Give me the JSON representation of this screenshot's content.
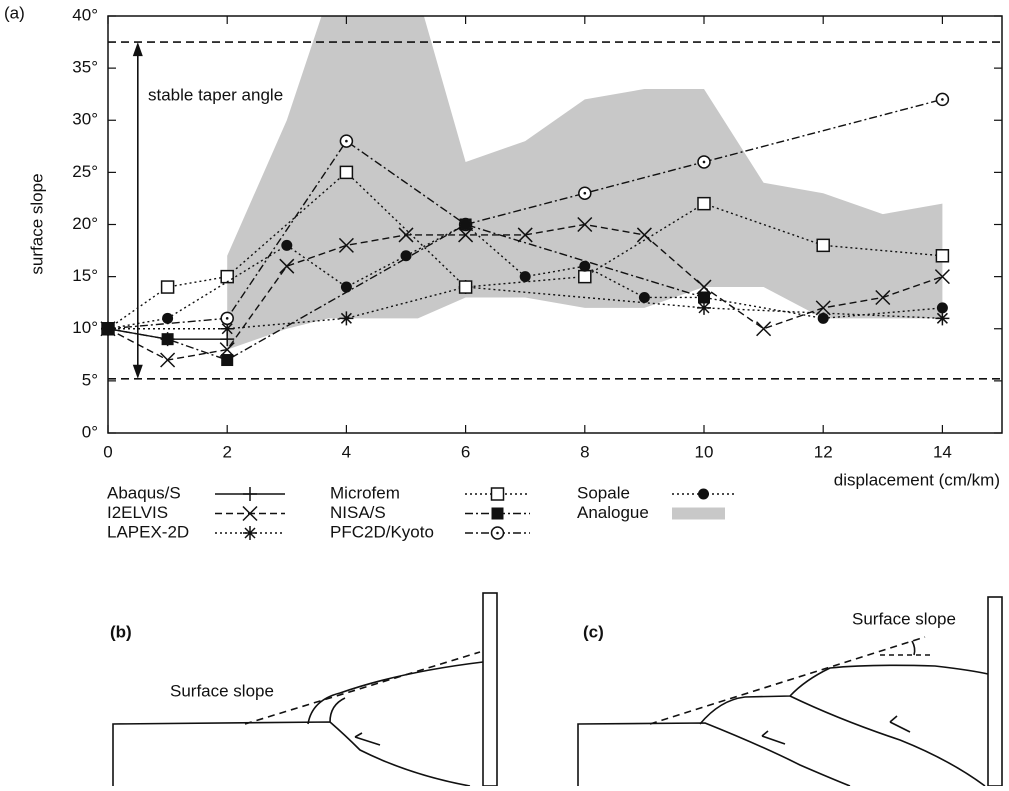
{
  "chart_data": {
    "type": "line",
    "panel_label": "(a)",
    "ylabel": "surface slope",
    "xlabel": "displacement (cm/km)",
    "xlim": [
      0,
      15
    ],
    "ylim": [
      0,
      40
    ],
    "xticks": [
      0,
      2,
      4,
      6,
      8,
      10,
      12,
      14
    ],
    "yticks": [
      {
        "value": 0,
        "label": "0°"
      },
      {
        "value": 5,
        "label": "5°"
      },
      {
        "value": 10,
        "label": "10°"
      },
      {
        "value": 15,
        "label": "15°"
      },
      {
        "value": 20,
        "label": "20°"
      },
      {
        "value": 25,
        "label": "25°"
      },
      {
        "value": 30,
        "label": "30°"
      },
      {
        "value": 35,
        "label": "35°"
      },
      {
        "value": 40,
        "label": "40°"
      }
    ],
    "annotation": "stable taper angle",
    "taper_range": [
      5.2,
      37.5
    ],
    "taper_arrow_x": 0.5,
    "band": {
      "name": "Analogue",
      "color": "#c8c8c8",
      "x": [
        2,
        3,
        3.7,
        5.2,
        6,
        7,
        8,
        9,
        10,
        11,
        12,
        13,
        14
      ],
      "upper": [
        17,
        30,
        42,
        42,
        26,
        28,
        32,
        33,
        33,
        24,
        23,
        21,
        22
      ],
      "lower": [
        8,
        10,
        11,
        11,
        13,
        13,
        12,
        12,
        14,
        14,
        11,
        11,
        11
      ]
    },
    "series": [
      {
        "name": "Abaqus/S",
        "color": "#111",
        "dash": "solid",
        "marker": "plus",
        "x": [
          0,
          1,
          2
        ],
        "values": [
          10,
          9,
          9
        ]
      },
      {
        "name": "I2ELVIS",
        "color": "#111",
        "dash": "dashed",
        "marker": "cross",
        "x": [
          0,
          1,
          2,
          3,
          4,
          5,
          6,
          7,
          8,
          9,
          10,
          11,
          12,
          13,
          14
        ],
        "values": [
          10,
          7,
          8,
          16,
          18,
          19,
          19,
          19,
          20,
          19,
          14,
          10,
          12,
          13,
          15
        ]
      },
      {
        "name": "LAPEX-2D",
        "color": "#111",
        "dash": "dotted",
        "marker": "star",
        "x": [
          0,
          2,
          4,
          6,
          10,
          14
        ],
        "values": [
          10,
          10,
          11,
          14,
          12,
          11
        ]
      },
      {
        "name": "Microfem",
        "color": "#111",
        "dash": "dotted",
        "marker": "square-open",
        "x": [
          0,
          1,
          2,
          4,
          6,
          8,
          10,
          12,
          14
        ],
        "values": [
          10,
          14,
          15,
          25,
          14,
          15,
          22,
          18,
          17
        ]
      },
      {
        "name": "NISA/S",
        "color": "#111",
        "dash": "dashdot",
        "marker": "square-filled",
        "x": [
          0,
          1,
          2,
          6,
          10
        ],
        "values": [
          10,
          9,
          7,
          20,
          13
        ]
      },
      {
        "name": "PFC2D/Kyoto",
        "color": "#111",
        "dash": "dashdot",
        "marker": "circle-dot",
        "x": [
          0,
          2,
          4,
          6,
          8,
          10,
          14
        ],
        "values": [
          10,
          11,
          28,
          20,
          23,
          26,
          32
        ]
      },
      {
        "name": "Sopale",
        "color": "#111",
        "dash": "dotted",
        "marker": "circle-filled",
        "x": [
          0,
          1,
          3,
          4,
          5,
          6,
          7,
          8,
          9,
          10,
          12,
          14
        ],
        "values": [
          10,
          11,
          18,
          14,
          17,
          20,
          15,
          16,
          13,
          13,
          11,
          12
        ]
      }
    ]
  },
  "panel_b": {
    "label": "(b)",
    "text": "Surface slope"
  },
  "panel_c": {
    "label": "(c)",
    "text": "Surface slope"
  }
}
